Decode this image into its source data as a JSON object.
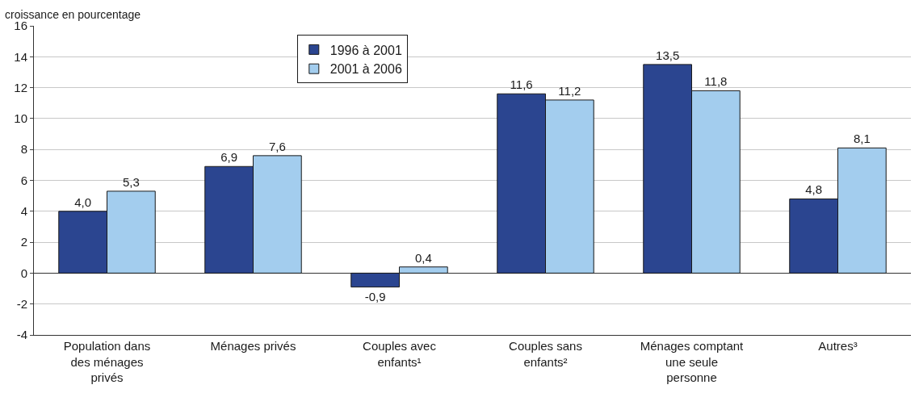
{
  "chart_data": {
    "type": "bar",
    "ylabel": "croissance en pourcentage",
    "categories": [
      "Population dans des ménages privés",
      "Ménages privés",
      "Couples avec enfants¹",
      "Couples sans enfants²",
      "Ménages comptant une seule personne",
      "Autres³"
    ],
    "series": [
      {
        "name": "1996 à 2001",
        "color": "#2b4590",
        "values": [
          4.0,
          6.9,
          -0.9,
          11.6,
          13.5,
          4.8
        ],
        "value_labels": [
          "4,0",
          "6,9",
          "-0,9",
          "11,6",
          "13,5",
          "4,8"
        ]
      },
      {
        "name": "2001 à 2006",
        "color": "#a3cdee",
        "values": [
          5.3,
          7.6,
          0.4,
          11.2,
          11.8,
          8.1
        ],
        "value_labels": [
          "5,3",
          "7,6",
          "0,4",
          "11,2",
          "11,8",
          "8,1"
        ]
      }
    ],
    "ylim": [
      -4,
      16
    ],
    "yticks": [
      {
        "value": -4,
        "label": "-4"
      },
      {
        "value": -2,
        "label": "-2"
      },
      0,
      2,
      4,
      6,
      8,
      10,
      12,
      14,
      16
    ],
    "grid": "y",
    "legend": "top"
  }
}
